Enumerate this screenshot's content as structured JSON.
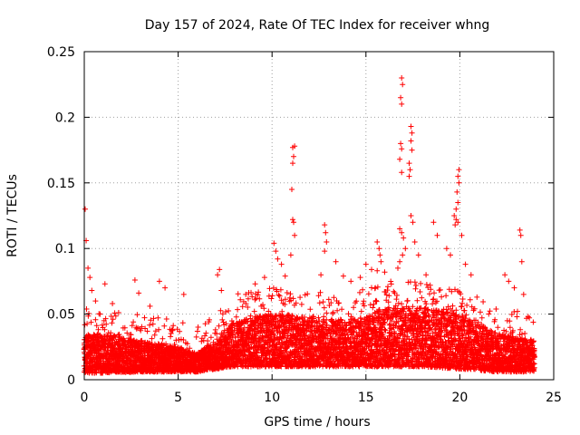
{
  "chart_data": {
    "type": "scatter",
    "title": "Day 157 of 2024, Rate Of TEC Index for receiver whng",
    "xlabel": "GPS time / hours",
    "ylabel": "ROTI / TECUs",
    "xlim": [
      0,
      25
    ],
    "ylim": [
      0,
      0.25
    ],
    "xticks": [
      0,
      5,
      10,
      15,
      20,
      25
    ],
    "xtick_labels": [
      "0",
      "5",
      "10",
      "15",
      "20",
      "25"
    ],
    "yticks": [
      0,
      0.05,
      0.1,
      0.15,
      0.2,
      0.25
    ],
    "ytick_labels": [
      "0",
      "0.05",
      "0.1",
      "0.15",
      "0.2",
      "0.25"
    ],
    "grid": true,
    "marker": "plus",
    "series_color": "#ff0000",
    "background_band": {
      "description": "dense cloud of ROTI points across 0-24 h",
      "x_start": 0.0,
      "x_end": 24.0,
      "x_step": 0.03,
      "profile": [
        [
          0,
          0.005,
          0.035
        ],
        [
          1,
          0.005,
          0.035
        ],
        [
          3,
          0.006,
          0.03
        ],
        [
          5,
          0.006,
          0.025
        ],
        [
          6,
          0.006,
          0.02
        ],
        [
          7,
          0.008,
          0.03
        ],
        [
          8,
          0.01,
          0.045
        ],
        [
          10,
          0.01,
          0.05
        ],
        [
          12,
          0.01,
          0.048
        ],
        [
          14,
          0.01,
          0.045
        ],
        [
          16,
          0.01,
          0.055
        ],
        [
          18,
          0.01,
          0.055
        ],
        [
          20,
          0.008,
          0.05
        ],
        [
          22,
          0.006,
          0.035
        ],
        [
          24,
          0.006,
          0.03
        ]
      ]
    },
    "spikes": [
      [
        0.05,
        0.13
      ],
      [
        0.1,
        0.106
      ],
      [
        0.2,
        0.085
      ],
      [
        0.3,
        0.078
      ],
      [
        0.4,
        0.068
      ],
      [
        0.6,
        0.06
      ],
      [
        1.1,
        0.073
      ],
      [
        1.5,
        0.058
      ],
      [
        2.7,
        0.076
      ],
      [
        2.9,
        0.066
      ],
      [
        3.5,
        0.056
      ],
      [
        4.0,
        0.075
      ],
      [
        4.3,
        0.07
      ],
      [
        5.3,
        0.065
      ],
      [
        7.2,
        0.084
      ],
      [
        7.1,
        0.08
      ],
      [
        7.3,
        0.068
      ],
      [
        8.6,
        0.065
      ],
      [
        9.1,
        0.073
      ],
      [
        9.6,
        0.078
      ],
      [
        10.1,
        0.104
      ],
      [
        10.2,
        0.098
      ],
      [
        10.3,
        0.092
      ],
      [
        10.5,
        0.088
      ],
      [
        10.7,
        0.079
      ],
      [
        11.1,
        0.177
      ],
      [
        11.2,
        0.178
      ],
      [
        11.15,
        0.17
      ],
      [
        11.1,
        0.165
      ],
      [
        11.05,
        0.145
      ],
      [
        11.1,
        0.122
      ],
      [
        11.15,
        0.12
      ],
      [
        11.2,
        0.11
      ],
      [
        11.0,
        0.095
      ],
      [
        12.6,
        0.08
      ],
      [
        12.8,
        0.118
      ],
      [
        12.85,
        0.112
      ],
      [
        12.9,
        0.105
      ],
      [
        12.8,
        0.098
      ],
      [
        13.4,
        0.09
      ],
      [
        13.8,
        0.079
      ],
      [
        14.2,
        0.075
      ],
      [
        14.7,
        0.078
      ],
      [
        15.0,
        0.088
      ],
      [
        15.3,
        0.084
      ],
      [
        15.5,
        0.07
      ],
      [
        15.6,
        0.105
      ],
      [
        15.7,
        0.1
      ],
      [
        15.75,
        0.095
      ],
      [
        15.8,
        0.09
      ],
      [
        15.6,
        0.083
      ],
      [
        16.0,
        0.082
      ],
      [
        16.7,
        0.085
      ],
      [
        16.8,
        0.09
      ],
      [
        16.9,
        0.23
      ],
      [
        16.95,
        0.225
      ],
      [
        16.85,
        0.215
      ],
      [
        16.9,
        0.21
      ],
      [
        16.85,
        0.18
      ],
      [
        16.9,
        0.176
      ],
      [
        16.8,
        0.168
      ],
      [
        16.9,
        0.158
      ],
      [
        16.8,
        0.115
      ],
      [
        16.9,
        0.112
      ],
      [
        17.0,
        0.108
      ],
      [
        17.1,
        0.1
      ],
      [
        16.95,
        0.095
      ],
      [
        17.4,
        0.193
      ],
      [
        17.45,
        0.188
      ],
      [
        17.4,
        0.182
      ],
      [
        17.45,
        0.175
      ],
      [
        17.3,
        0.165
      ],
      [
        17.35,
        0.16
      ],
      [
        17.3,
        0.155
      ],
      [
        17.4,
        0.125
      ],
      [
        17.5,
        0.12
      ],
      [
        17.6,
        0.105
      ],
      [
        17.8,
        0.095
      ],
      [
        18.2,
        0.08
      ],
      [
        18.6,
        0.12
      ],
      [
        18.8,
        0.11
      ],
      [
        19.3,
        0.1
      ],
      [
        19.5,
        0.095
      ],
      [
        19.7,
        0.125
      ],
      [
        19.8,
        0.122
      ],
      [
        19.75,
        0.118
      ],
      [
        19.9,
        0.12
      ],
      [
        19.95,
        0.16
      ],
      [
        19.9,
        0.155
      ],
      [
        19.95,
        0.15
      ],
      [
        19.85,
        0.143
      ],
      [
        19.9,
        0.135
      ],
      [
        19.8,
        0.13
      ],
      [
        20.1,
        0.11
      ],
      [
        20.3,
        0.088
      ],
      [
        20.6,
        0.08
      ],
      [
        22.4,
        0.08
      ],
      [
        22.6,
        0.075
      ],
      [
        22.9,
        0.07
      ],
      [
        23.2,
        0.114
      ],
      [
        23.25,
        0.11
      ],
      [
        23.3,
        0.09
      ],
      [
        23.4,
        0.065
      ]
    ]
  }
}
